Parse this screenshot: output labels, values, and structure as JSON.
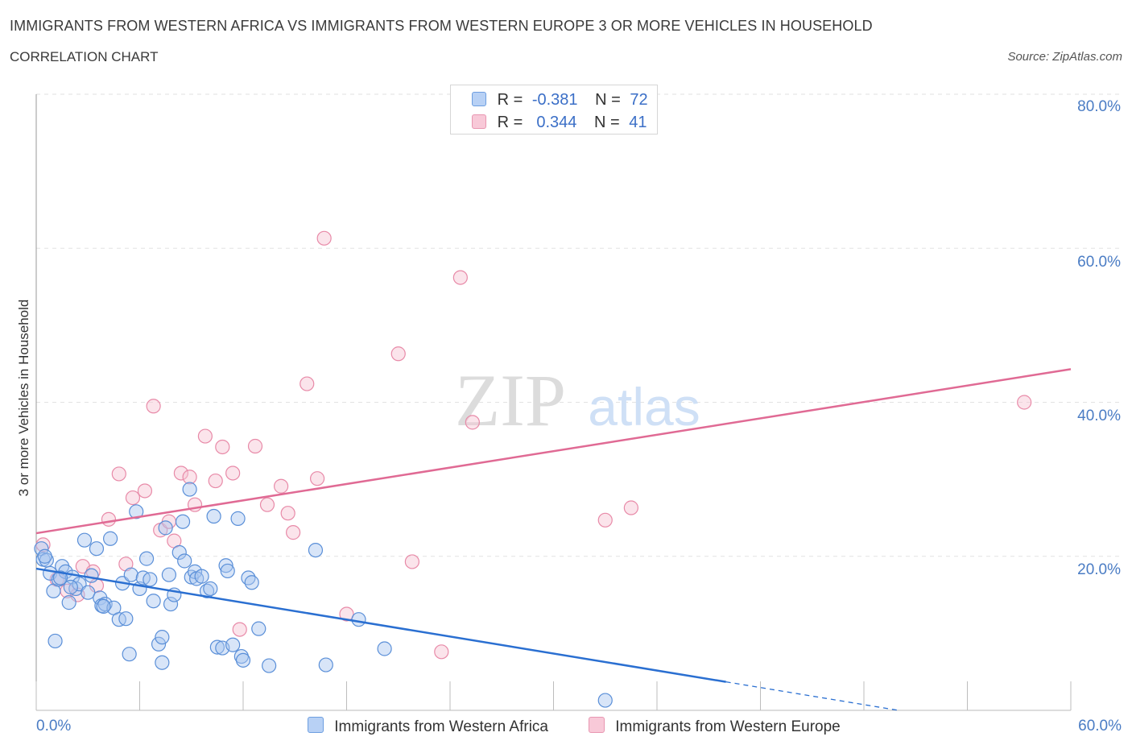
{
  "title": "IMMIGRANTS FROM WESTERN AFRICA VS IMMIGRANTS FROM WESTERN EUROPE 3 OR MORE VEHICLES IN HOUSEHOLD",
  "subtitle": "CORRELATION CHART",
  "source": "Source: ZipAtlas.com",
  "watermark": {
    "zip": "ZIP",
    "atlas": "atlas"
  },
  "legend": {
    "rows": [
      {
        "r_label": "R =",
        "r_value": "-0.381",
        "n_label": "N =",
        "n_value": "72"
      },
      {
        "r_label": "R =",
        "r_value": " 0.344",
        "n_label": "N =",
        "n_value": "41"
      }
    ]
  },
  "chart_data": {
    "type": "scatter",
    "xlabel": "",
    "ylabel": "3 or more Vehicles in Household",
    "xlim": [
      0,
      60
    ],
    "ylim": [
      0,
      80
    ],
    "x_tick_labels": [
      "0.0%",
      "60.0%"
    ],
    "y_tick_labels": [
      "20.0%",
      "40.0%",
      "60.0%",
      "80.0%"
    ],
    "y_ticks": [
      20,
      40,
      60,
      80
    ],
    "colors": {
      "blue": "#5a8fd8",
      "blue_fill": "#a9c6f0",
      "blue_line": "#2a6fd1",
      "pink": "#e88aa8",
      "pink_fill": "#f6c3d3",
      "pink_line": "#e06a94"
    },
    "series": [
      {
        "name": "Immigrants from Western Africa",
        "color": "blue",
        "R": -0.381,
        "N": 72,
        "trend": {
          "x0": 0,
          "y0": 18.4,
          "x1": 40,
          "y1": 3.7,
          "dash_to_x": 50,
          "dash_to_y": 0.0
        },
        "points": [
          [
            0.3,
            21.0
          ],
          [
            0.4,
            19.6
          ],
          [
            0.6,
            19.5
          ],
          [
            0.8,
            17.8
          ],
          [
            1.0,
            15.5
          ],
          [
            1.1,
            9.0
          ],
          [
            1.3,
            17.0
          ],
          [
            1.5,
            18.7
          ],
          [
            1.7,
            18.0
          ],
          [
            1.9,
            14.0
          ],
          [
            2.1,
            17.3
          ],
          [
            2.3,
            15.8
          ],
          [
            2.5,
            16.4
          ],
          [
            2.8,
            22.1
          ],
          [
            3.0,
            15.3
          ],
          [
            3.2,
            17.5
          ],
          [
            3.5,
            21.0
          ],
          [
            3.7,
            14.6
          ],
          [
            3.8,
            13.6
          ],
          [
            4.0,
            13.8
          ],
          [
            4.3,
            22.3
          ],
          [
            4.5,
            13.3
          ],
          [
            4.8,
            11.8
          ],
          [
            5.0,
            16.5
          ],
          [
            5.2,
            11.9
          ],
          [
            5.5,
            17.6
          ],
          [
            5.8,
            25.8
          ],
          [
            6.0,
            15.8
          ],
          [
            6.2,
            17.2
          ],
          [
            6.4,
            19.7
          ],
          [
            6.6,
            17.0
          ],
          [
            6.8,
            14.2
          ],
          [
            7.1,
            8.6
          ],
          [
            7.3,
            9.5
          ],
          [
            7.5,
            23.7
          ],
          [
            7.7,
            17.6
          ],
          [
            7.8,
            13.8
          ],
          [
            8.0,
            15.0
          ],
          [
            8.3,
            20.5
          ],
          [
            8.5,
            24.5
          ],
          [
            8.6,
            19.4
          ],
          [
            8.9,
            28.7
          ],
          [
            9.0,
            17.3
          ],
          [
            9.2,
            18.0
          ],
          [
            9.3,
            17.1
          ],
          [
            9.6,
            17.4
          ],
          [
            9.9,
            15.5
          ],
          [
            10.1,
            15.8
          ],
          [
            10.3,
            25.2
          ],
          [
            10.5,
            8.2
          ],
          [
            10.8,
            8.1
          ],
          [
            11.0,
            18.8
          ],
          [
            11.1,
            18.1
          ],
          [
            11.4,
            8.5
          ],
          [
            11.7,
            24.9
          ],
          [
            11.9,
            7.0
          ],
          [
            12.0,
            6.5
          ],
          [
            12.3,
            17.2
          ],
          [
            12.5,
            16.6
          ],
          [
            12.9,
            10.6
          ],
          [
            13.5,
            5.8
          ],
          [
            16.2,
            20.8
          ],
          [
            16.8,
            5.9
          ],
          [
            18.7,
            11.8
          ],
          [
            20.2,
            8.0
          ],
          [
            3.9,
            13.5
          ],
          [
            5.4,
            7.3
          ],
          [
            7.3,
            6.2
          ],
          [
            2.0,
            16.0
          ],
          [
            1.4,
            17.2
          ],
          [
            33.0,
            1.3
          ],
          [
            0.5,
            20.0
          ]
        ]
      },
      {
        "name": "Immigrants from Western Europe",
        "color": "pink",
        "R": 0.344,
        "N": 41,
        "trend": {
          "x0": 0,
          "y0": 23.0,
          "x1": 60,
          "y1": 44.3
        },
        "points": [
          [
            0.4,
            21.5
          ],
          [
            1.2,
            17.0
          ],
          [
            1.8,
            15.5
          ],
          [
            2.4,
            15.0
          ],
          [
            2.7,
            18.7
          ],
          [
            3.3,
            18.0
          ],
          [
            3.5,
            16.2
          ],
          [
            4.2,
            24.8
          ],
          [
            4.8,
            30.7
          ],
          [
            5.2,
            19.0
          ],
          [
            5.6,
            27.6
          ],
          [
            6.3,
            28.5
          ],
          [
            6.8,
            39.5
          ],
          [
            7.2,
            23.4
          ],
          [
            7.7,
            24.5
          ],
          [
            8.0,
            22.0
          ],
          [
            8.4,
            30.8
          ],
          [
            8.9,
            30.3
          ],
          [
            9.2,
            26.7
          ],
          [
            9.8,
            35.6
          ],
          [
            10.4,
            29.8
          ],
          [
            10.8,
            34.2
          ],
          [
            11.4,
            30.8
          ],
          [
            11.8,
            10.5
          ],
          [
            12.7,
            34.3
          ],
          [
            13.4,
            26.7
          ],
          [
            14.2,
            29.1
          ],
          [
            14.6,
            25.6
          ],
          [
            14.9,
            23.1
          ],
          [
            15.7,
            42.4
          ],
          [
            16.3,
            30.1
          ],
          [
            16.7,
            61.3
          ],
          [
            18.0,
            12.5
          ],
          [
            21.0,
            46.3
          ],
          [
            21.8,
            19.3
          ],
          [
            23.5,
            7.6
          ],
          [
            24.6,
            56.2
          ],
          [
            25.3,
            37.4
          ],
          [
            33.0,
            24.7
          ],
          [
            34.5,
            26.3
          ],
          [
            57.3,
            40.0
          ]
        ]
      }
    ]
  },
  "bottom_legend": {
    "blue_label": "Immigrants from Western Africa",
    "pink_label": "Immigrants from Western Europe"
  }
}
